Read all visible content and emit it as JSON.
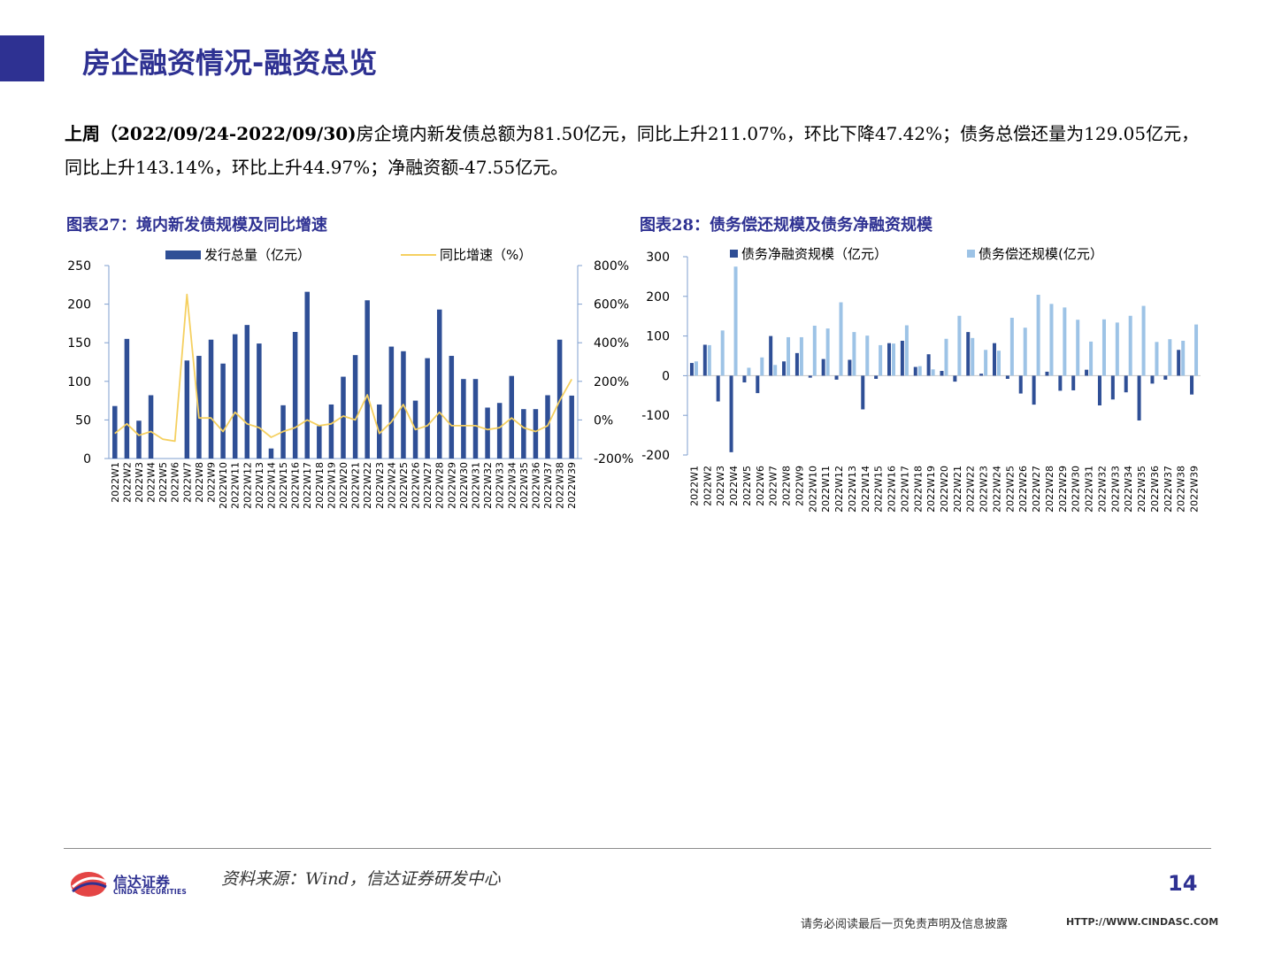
{
  "page": {
    "title": "房企融资情况-融资总览",
    "summary_lead": "上周（2022/09/24-2022/09/30)",
    "summary_body": "房企境内新发债总额为81.50亿元，同比上升211.07%，环比下降47.42%；债务总偿还量为129.05亿元，同比上升143.14%，环比上升44.97%；净融资额-47.55亿元。",
    "source": "资料来源：Wind，信达证券研发中心",
    "page_number": "14",
    "disclaimer": "请务必阅读最后一页免责声明及信息披露",
    "website": "HTTP://WWW.CINDASC.COM",
    "logo_cn": "信达证券",
    "logo_en": "CINDA SECURITIES"
  },
  "colors": {
    "brand": "#2e3192",
    "bar_dark": "#2f4f96",
    "bar_light": "#9dc3e6",
    "line_yellow": "#f5d060"
  },
  "chart_data": [
    {
      "type": "bar",
      "title": "图表27：境内新发债规模及同比增速",
      "legend_position": "top",
      "categories": [
        "2022W1",
        "2022W2",
        "2022W3",
        "2022W4",
        "2022W5",
        "2022W6",
        "2022W7",
        "2022W8",
        "2022W9",
        "2022W10",
        "2022W11",
        "2022W12",
        "2022W13",
        "2022W14",
        "2022W15",
        "2022W16",
        "2022W17",
        "2022W18",
        "2022W19",
        "2022W20",
        "2022W21",
        "2022W22",
        "2022W23",
        "2022W24",
        "2022W25",
        "2022W26",
        "2022W27",
        "2022W28",
        "2022W29",
        "2022W30",
        "2022W31",
        "2022W32",
        "2022W33",
        "2022W34",
        "2022W35",
        "2022W36",
        "2022W37",
        "2022W38",
        "2022W39"
      ],
      "series": [
        {
          "name": "发行总量（亿元）",
          "kind": "bar",
          "axis": "left",
          "values": [
            68,
            155,
            49,
            82,
            0,
            0,
            127,
            133,
            154,
            123,
            161,
            173,
            149,
            13,
            69,
            164,
            216,
            42,
            70,
            106,
            134,
            205,
            70,
            145,
            139,
            75,
            130,
            193,
            133,
            103,
            103,
            66,
            72,
            107,
            64,
            64,
            82,
            154,
            81.5
          ]
        },
        {
          "name": "同比增速（%）",
          "kind": "line",
          "axis": "right",
          "values": [
            -70,
            -20,
            -80,
            -60,
            -100,
            -110,
            650,
            10,
            10,
            -60,
            40,
            -20,
            -40,
            -90,
            -60,
            -40,
            0,
            -30,
            -20,
            20,
            0,
            130,
            -70,
            -10,
            80,
            -50,
            -30,
            40,
            -30,
            -30,
            -30,
            -50,
            -40,
            10,
            -40,
            -60,
            -30,
            100,
            211
          ]
        }
      ],
      "y_left": {
        "min": 0,
        "max": 250,
        "ticks": [
          0,
          50,
          100,
          150,
          200,
          250
        ]
      },
      "y_right": {
        "min": -200,
        "max": 800,
        "ticks": [
          "-200%",
          "0%",
          "200%",
          "400%",
          "600%",
          "800%"
        ]
      }
    },
    {
      "type": "bar",
      "title": "图表28：债务偿还规模及债务净融资规模",
      "legend_position": "top",
      "categories": [
        "2022W1",
        "2022W2",
        "2022W3",
        "2022W4",
        "2022W5",
        "2022W6",
        "2022W7",
        "2022W8",
        "2022W9",
        "2022W10",
        "2022W11",
        "2022W12",
        "2022W13",
        "2022W14",
        "2022W15",
        "2022W16",
        "2022W17",
        "2022W18",
        "2022W19",
        "2022W20",
        "2022W21",
        "2022W22",
        "2022W23",
        "2022W24",
        "2022W25",
        "2022W26",
        "2022W27",
        "2022W28",
        "2022W29",
        "2022W30",
        "2022W31",
        "2022W32",
        "2022W33",
        "2022W34",
        "2022W35",
        "2022W36",
        "2022W37",
        "2022W38",
        "2022W39"
      ],
      "series": [
        {
          "name": "债务净融资规模（亿元）",
          "values": [
            32,
            78,
            -65,
            -193,
            -17,
            -44,
            100,
            36,
            57,
            -5,
            42,
            -10,
            40,
            -85,
            -8,
            82,
            88,
            22,
            54,
            12,
            -15,
            110,
            5,
            82,
            -8,
            -45,
            -73,
            10,
            -38,
            -37,
            15,
            -75,
            -60,
            -42,
            -113,
            -20,
            -10,
            65,
            -47.55
          ]
        },
        {
          "name": "债务偿还规模(亿元）",
          "values": [
            36,
            77,
            114,
            275,
            20,
            46,
            27,
            97,
            97,
            126,
            119,
            185,
            110,
            101,
            77,
            81,
            127,
            24,
            16,
            93,
            151,
            95,
            65,
            63,
            146,
            121,
            204,
            181,
            172,
            141,
            86,
            142,
            134,
            151,
            176,
            85,
            92,
            88,
            129.05
          ]
        }
      ],
      "y": {
        "min": -200,
        "max": 300,
        "ticks": [
          -200,
          -100,
          0,
          100,
          200,
          300
        ]
      }
    }
  ]
}
